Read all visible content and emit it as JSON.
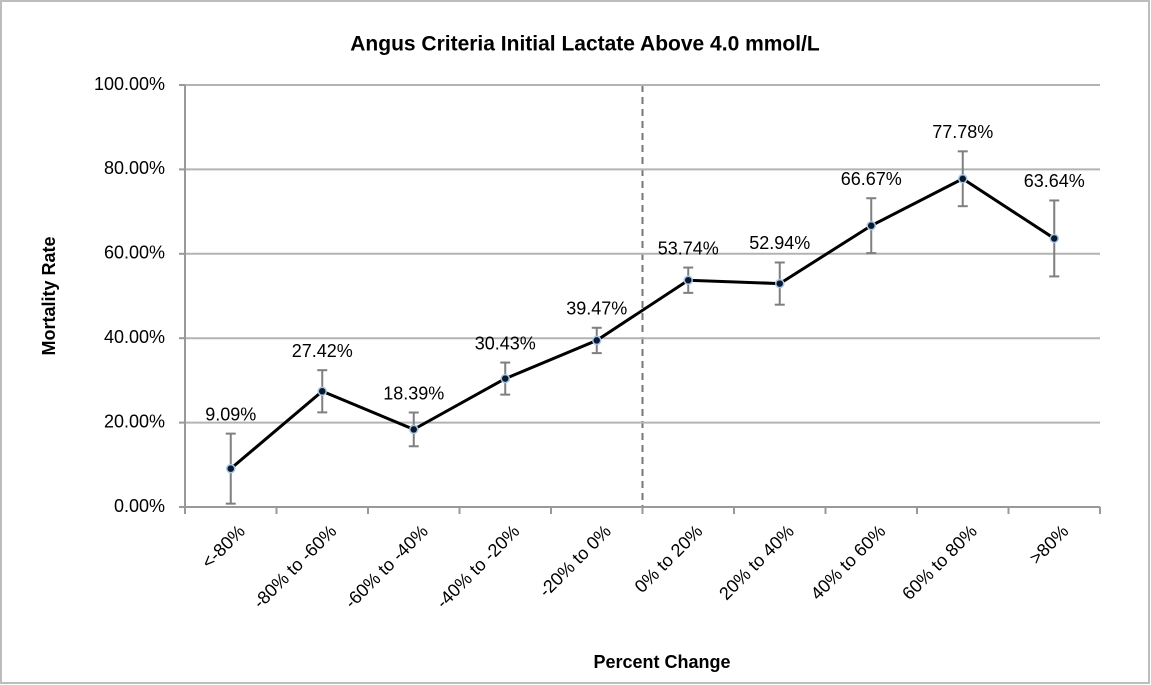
{
  "chart_data": {
    "type": "line",
    "title": "Angus Criteria Initial Lactate Above 4.0 mmol/L",
    "x_label": "Percent Change",
    "y_label": "Mortality Rate",
    "categories": [
      "<-80%",
      "-80% to -60%",
      "-60% to -40%",
      "-40% to -20%",
      "-20% to 0%",
      "0% to 20%",
      "20% to 40%",
      "40% to 60%",
      "60% to 80%",
      ">80%"
    ],
    "values": [
      9.09,
      27.42,
      18.39,
      30.43,
      39.47,
      53.74,
      52.94,
      66.67,
      77.78,
      63.64
    ],
    "value_labels": [
      "9.09%",
      "27.42%",
      "18.39%",
      "30.43%",
      "39.47%",
      "53.74%",
      "52.94%",
      "66.67%",
      "77.78%",
      "63.64%"
    ],
    "errors": [
      8.3,
      5,
      4,
      3.8,
      3,
      3,
      5,
      6.5,
      6.5,
      9
    ],
    "color": "#000000",
    "error_color": "#7f7f7f",
    "ylim": [
      0,
      100
    ],
    "yticks": [
      {
        "value": 0,
        "label": "0.00%"
      },
      {
        "value": 20,
        "label": "20.00%"
      },
      {
        "value": 40,
        "label": "40.00%"
      },
      {
        "value": 60,
        "label": "60.00%"
      },
      {
        "value": 80,
        "label": "80.00%"
      },
      {
        "value": 100,
        "label": "100.00%"
      }
    ],
    "grid": true
  }
}
